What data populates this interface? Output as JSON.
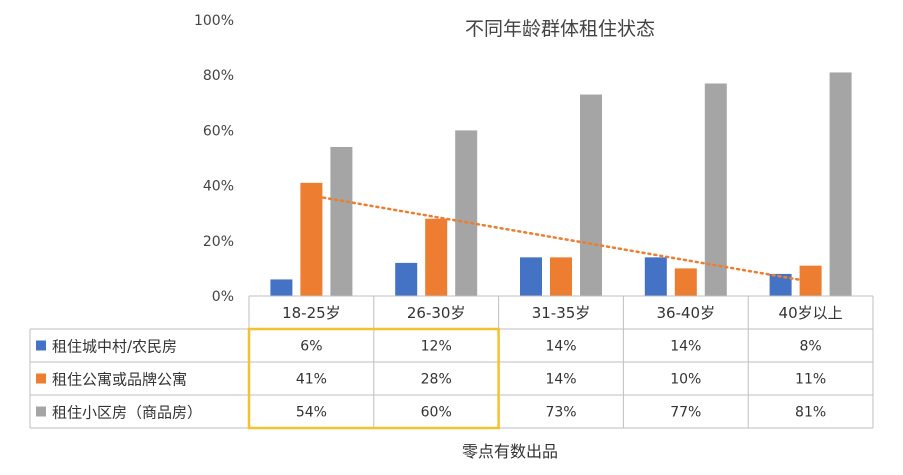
{
  "chart_data": {
    "type": "bar",
    "title": "不同年龄群体租住状态",
    "categories": [
      "18-25岁",
      "26-30岁",
      "31-35岁",
      "36-40岁",
      "40岁以上"
    ],
    "series": [
      {
        "name": "租住城中村/农民房",
        "color": "#4472C4",
        "values": [
          6,
          12,
          14,
          14,
          8
        ],
        "labels": [
          "6%",
          "12%",
          "14%",
          "14%",
          "8%"
        ]
      },
      {
        "name": "租住公寓或品牌公寓",
        "color": "#ED7D31",
        "values": [
          41,
          28,
          14,
          10,
          11
        ],
        "labels": [
          "41%",
          "28%",
          "14%",
          "10%",
          "11%"
        ]
      },
      {
        "name": "租住小区房（商品房）",
        "color": "#A5A5A5",
        "values": [
          54,
          60,
          73,
          77,
          81
        ],
        "labels": [
          "54%",
          "60%",
          "73%",
          "77%",
          "81%"
        ]
      }
    ],
    "ylim": [
      0,
      100
    ],
    "yticks": [
      "0%",
      "20%",
      "40%",
      "60%",
      "80%",
      "100%"
    ],
    "trendline": {
      "series": "租住公寓或品牌公寓",
      "style": "dotted",
      "color": "#ED7D31"
    },
    "data_table": true,
    "highlight": {
      "columns": [
        "18-25岁",
        "26-30岁"
      ],
      "color": "#F2C230"
    },
    "grid": false,
    "legend": "data-table-left"
  },
  "source_note": "零点有数出品"
}
